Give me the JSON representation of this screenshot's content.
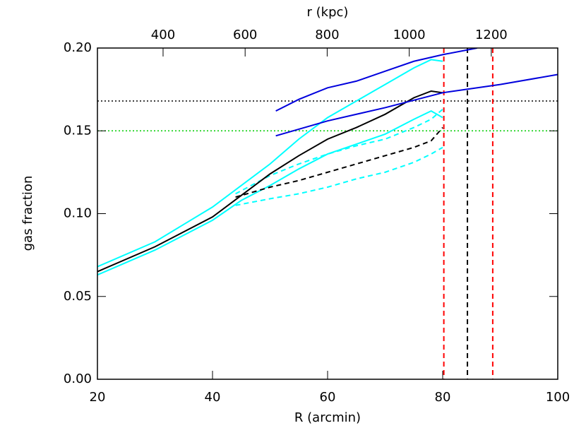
{
  "chart_data": {
    "type": "line",
    "xlabel": "R (arcmin)",
    "ylabel": "gas fraction",
    "x2label": "r (kpc)",
    "xlim": [
      20,
      100
    ],
    "xticks": [
      20,
      40,
      60,
      80,
      100
    ],
    "x2lim": [
      240,
      1362
    ],
    "x2ticks": [
      400,
      600,
      800,
      1000,
      1200
    ],
    "ylim": [
      0,
      0.2
    ],
    "yticks": [
      {
        "value": 0,
        "label": "0.00"
      },
      {
        "value": 0.05,
        "label": "0.05"
      },
      {
        "value": 0.1,
        "label": "0.10"
      },
      {
        "value": 0.15,
        "label": "0.15"
      },
      {
        "value": 0.2,
        "label": "0.20"
      }
    ],
    "series": [
      {
        "color": "#00ffff",
        "dash": "solid",
        "x": [
          20,
          30,
          40,
          50,
          55,
          60,
          65,
          70,
          75,
          78,
          80
        ],
        "values": [
          0.068,
          0.083,
          0.104,
          0.13,
          0.145,
          0.158,
          0.168,
          0.178,
          0.188,
          0.193,
          0.192
        ]
      },
      {
        "color": "#00ffff",
        "dash": "solid",
        "x": [
          20,
          30,
          40,
          45,
          50,
          55,
          60,
          65,
          70,
          75,
          78,
          80
        ],
        "values": [
          0.063,
          0.078,
          0.096,
          0.108,
          0.117,
          0.127,
          0.136,
          0.142,
          0.148,
          0.157,
          0.162,
          0.158
        ]
      },
      {
        "color": "#00ffff",
        "dash": "dashed",
        "x": [
          44,
          50,
          55,
          60,
          65,
          70,
          75,
          78,
          80
        ],
        "values": [
          0.112,
          0.123,
          0.13,
          0.136,
          0.141,
          0.145,
          0.152,
          0.157,
          0.163
        ]
      },
      {
        "color": "#00ffff",
        "dash": "dashed",
        "x": [
          44,
          50,
          55,
          60,
          65,
          70,
          75,
          78,
          80
        ],
        "values": [
          0.105,
          0.109,
          0.112,
          0.116,
          0.121,
          0.125,
          0.131,
          0.136,
          0.14
        ]
      },
      {
        "color": "#000000",
        "dash": "solid",
        "x": [
          20,
          30,
          40,
          45,
          50,
          55,
          60,
          65,
          70,
          75,
          78,
          80
        ],
        "values": [
          0.065,
          0.08,
          0.098,
          0.111,
          0.124,
          0.135,
          0.145,
          0.152,
          0.16,
          0.17,
          0.174,
          0.173
        ]
      },
      {
        "color": "#000000",
        "dash": "dashed",
        "x": [
          44,
          50,
          55,
          60,
          65,
          70,
          75,
          78,
          80
        ],
        "values": [
          0.11,
          0.116,
          0.12,
          0.125,
          0.13,
          0.135,
          0.14,
          0.144,
          0.152
        ]
      },
      {
        "color": "#0000dd",
        "dash": "solid",
        "x": [
          51,
          55,
          60,
          65,
          70,
          75,
          80,
          86
        ],
        "values": [
          0.162,
          0.169,
          0.176,
          0.18,
          0.186,
          0.192,
          0.196,
          0.2
        ]
      },
      {
        "color": "#0000dd",
        "dash": "solid",
        "x": [
          51,
          60,
          70,
          80,
          90,
          100
        ],
        "values": [
          0.147,
          0.156,
          0.164,
          0.173,
          0.178,
          0.184
        ]
      }
    ],
    "hlines": [
      {
        "value": 0.168,
        "color": "#000000",
        "dash": "dotted"
      },
      {
        "value": 0.15,
        "color": "#00cc00",
        "dash": "dotted"
      }
    ],
    "vlines": [
      {
        "value": 80.2,
        "color": "#ff0000",
        "dash": "dashed"
      },
      {
        "value": 84.3,
        "color": "#000000",
        "dash": "dashed"
      },
      {
        "value": 88.7,
        "color": "#ff0000",
        "dash": "dashed"
      }
    ]
  }
}
